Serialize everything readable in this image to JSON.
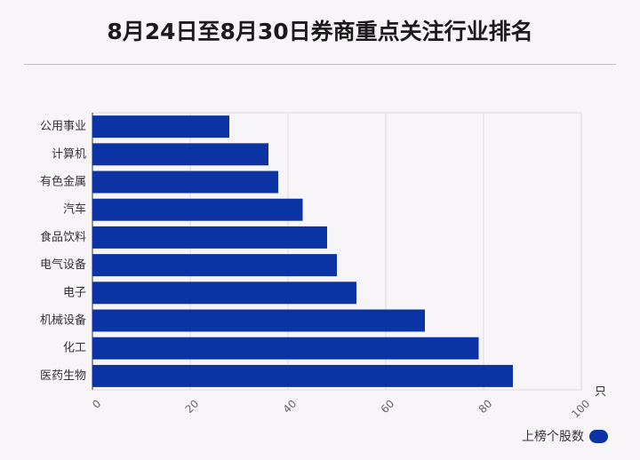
{
  "chart_data": {
    "type": "bar",
    "orientation": "horizontal",
    "title": "8月24日至8月30日券商重点关注行业排名",
    "categories": [
      "公用事业",
      "计算机",
      "有色金属",
      "汽车",
      "食品饮料",
      "电气设备",
      "电子",
      "机械设备",
      "化工",
      "医药生物"
    ],
    "series": [
      {
        "name": "上榜个股数",
        "values": [
          28,
          36,
          38,
          43,
          48,
          50,
          54,
          68,
          79,
          86
        ]
      }
    ],
    "xunit": "只",
    "xlim": [
      0,
      100
    ],
    "xticks": [
      0,
      20,
      40,
      60,
      80,
      100
    ],
    "grid": true,
    "legend_position": "bottom-right",
    "bar_color": "#0b33a3"
  }
}
